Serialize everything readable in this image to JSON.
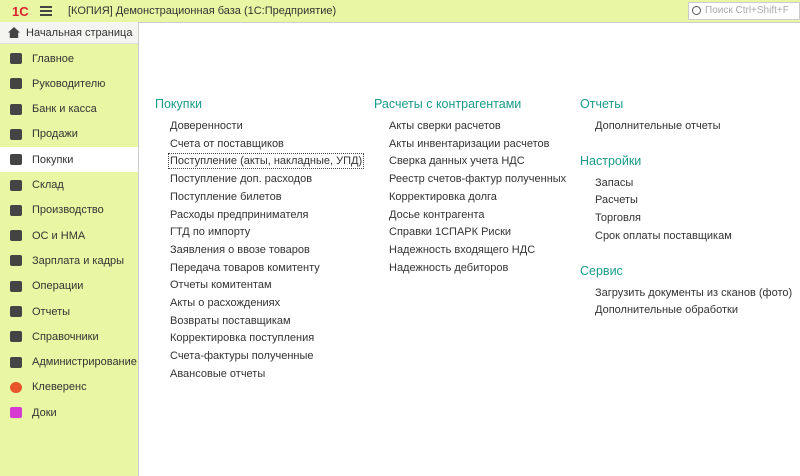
{
  "header": {
    "logo": "1С",
    "title": "[КОПИЯ] Демонстрационная база  (1С:Предприятие)",
    "search_placeholder": "Поиск Ctrl+Shift+F"
  },
  "sidebar": {
    "home": "Начальная страница",
    "sections": [
      "Главное",
      "Руководителю",
      "Банк и касса",
      "Продажи",
      "Покупки",
      "Склад",
      "Производство",
      "ОС и НМА",
      "Зарплата и кадры",
      "Операции",
      "Отчеты",
      "Справочники",
      "Администрирование",
      "Клеверенс",
      "Доки"
    ]
  },
  "columns": [
    {
      "groups": [
        {
          "title": "Покупки",
          "items": [
            "Доверенности",
            "Счета от поставщиков",
            "Поступление (акты, накладные, УПД)",
            "Поступление доп. расходов",
            "Поступление билетов",
            "Расходы предпринимателя",
            "ГТД по импорту",
            "Заявления о ввозе товаров",
            "Передача товаров комитенту",
            "Отчеты комитентам",
            "Акты о расхождениях",
            "Возвраты поставщикам",
            "Корректировка поступления",
            "Счета-фактуры полученные",
            "Авансовые отчеты"
          ]
        }
      ]
    },
    {
      "groups": [
        {
          "title": "Расчеты с контрагентами",
          "items": [
            "Акты сверки расчетов",
            "Акты инвентаризации расчетов",
            "Сверка данных учета НДС",
            "Реестр счетов-фактур полученных",
            "Корректировка долга",
            "Досье контрагента",
            "Справки 1СПАРК Риски",
            "Надежность входящего НДС",
            "Надежность дебиторов"
          ]
        }
      ]
    },
    {
      "groups": [
        {
          "title": "Отчеты",
          "items": [
            "Дополнительные отчеты"
          ]
        },
        {
          "title": "Настройки",
          "items": [
            "Запасы",
            "Расчеты",
            "Торговля",
            "Срок оплаты поставщикам"
          ]
        },
        {
          "title": "Сервис",
          "items": [
            "Загрузить документы из сканов (фото)",
            "Дополнительные обработки"
          ]
        }
      ]
    }
  ]
}
